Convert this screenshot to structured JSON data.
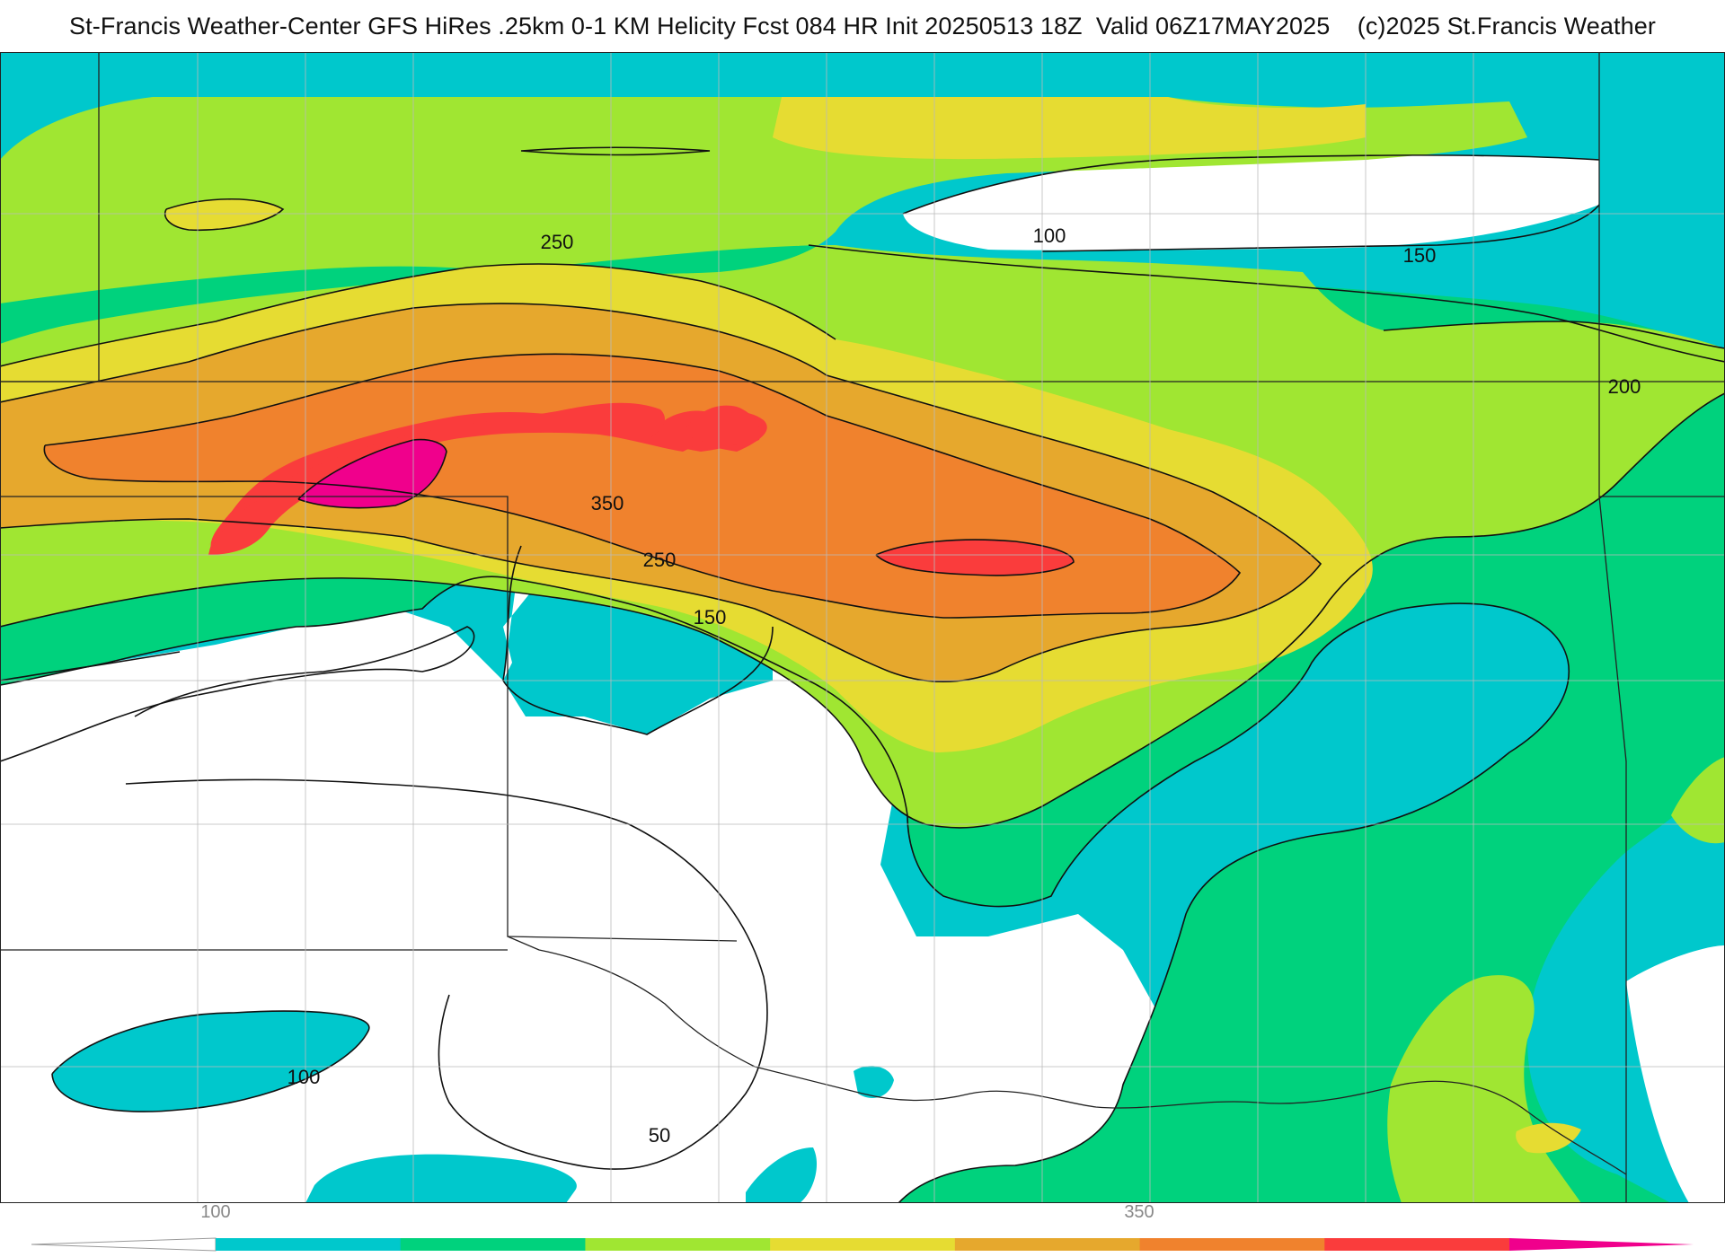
{
  "header": {
    "title": "St-Francis Weather-Center GFS HiRes .25km 0-1 KM Helicity Fcst 084 HR Init 20250513 18Z  Valid 06Z17MAY2025    (c)2025 St.Francis Weather"
  },
  "map": {
    "field": "0-1 KM Helicity",
    "contour_labels": [
      {
        "id": "label-100-north",
        "text": "100"
      },
      {
        "id": "label-150-northeast",
        "text": "150"
      },
      {
        "id": "label-200-east",
        "text": "200"
      },
      {
        "id": "label-250-north",
        "text": "250"
      },
      {
        "id": "label-350",
        "text": "350"
      },
      {
        "id": "label-250-south",
        "text": "250"
      },
      {
        "id": "label-150-south",
        "text": "150"
      },
      {
        "id": "label-100-southwest",
        "text": "100"
      },
      {
        "id": "label-50",
        "text": "50"
      }
    ]
  },
  "legend": {
    "tick_labels": [
      "100",
      "350"
    ],
    "colors": [
      "#00c8cc",
      "#00d27d",
      "#a0e632",
      "#e6dc32",
      "#e6a82d",
      "#f0822d",
      "#fa3c3c",
      "#f0008c"
    ]
  }
}
